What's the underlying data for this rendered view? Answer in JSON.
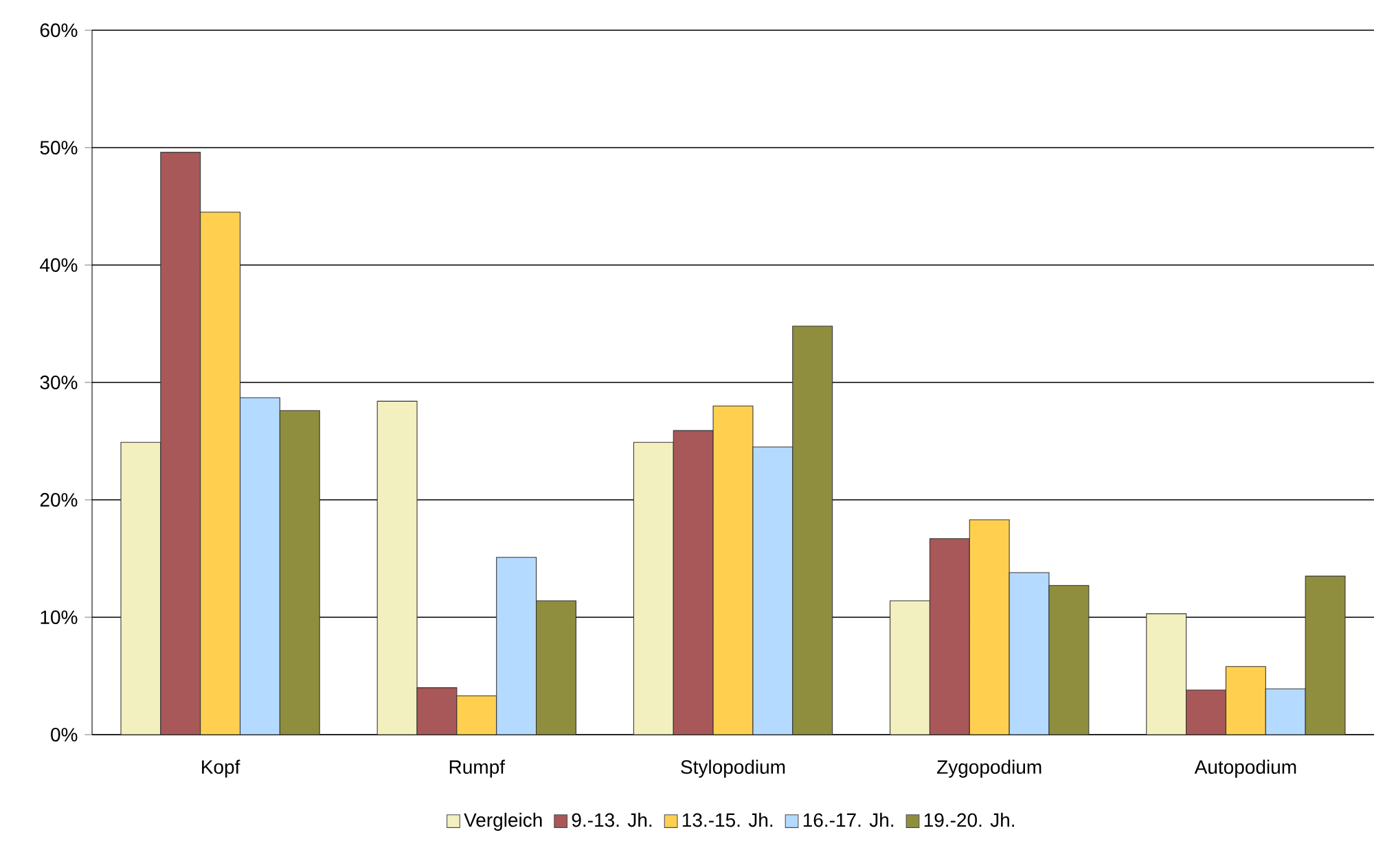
{
  "chart_data": {
    "type": "bar",
    "categories": [
      "Kopf",
      "Rumpf",
      "Stylopodium",
      "Zygopodium",
      "Autopodium"
    ],
    "series": [
      {
        "name": "Vergleich",
        "color": "#f3f0c0",
        "values": [
          24.9,
          28.4,
          24.9,
          11.4,
          10.3
        ]
      },
      {
        "name": "9.-13. Jh.",
        "color": "#a85858",
        "values": [
          49.6,
          4.0,
          25.9,
          16.7,
          3.8
        ]
      },
      {
        "name": "13.-15. Jh.",
        "color": "#ffd050",
        "values": [
          44.5,
          3.3,
          28.0,
          18.3,
          5.8
        ]
      },
      {
        "name": "16.-17. Jh.",
        "color": "#b4daff",
        "values": [
          28.7,
          15.1,
          24.5,
          13.8,
          3.9
        ]
      },
      {
        "name": "19.-20. Jh.",
        "color": "#8e8e3e",
        "values": [
          27.6,
          11.4,
          34.8,
          12.7,
          13.5
        ]
      }
    ],
    "ylim": [
      0,
      60
    ],
    "yticks": [
      {
        "value": 0,
        "label": "0%"
      },
      {
        "value": 10,
        "label": "10%"
      },
      {
        "value": 20,
        "label": "20%"
      },
      {
        "value": 30,
        "label": "30%"
      },
      {
        "value": 40,
        "label": "40%"
      },
      {
        "value": 50,
        "label": "50%"
      },
      {
        "value": 60,
        "label": "60%"
      }
    ],
    "grid": "y",
    "legend": "bottom"
  }
}
